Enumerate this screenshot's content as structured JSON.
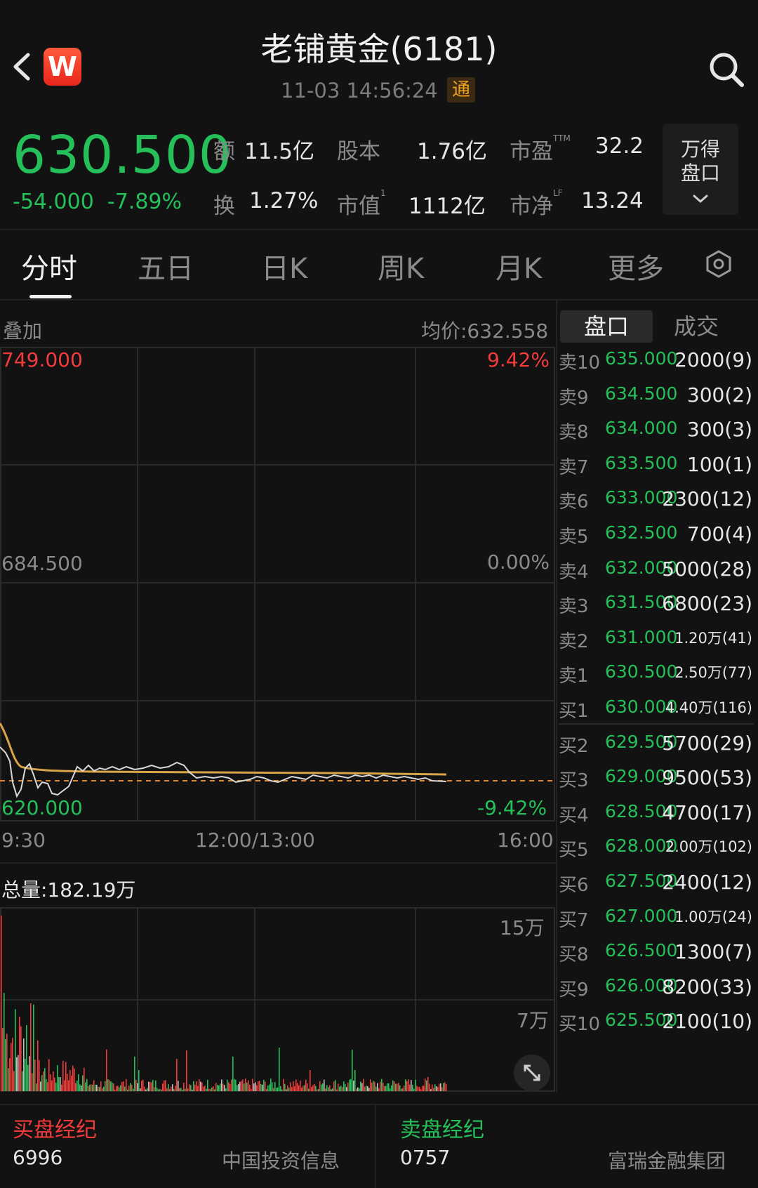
{
  "header": {
    "title": "老铺黄金(6181)",
    "datetime": "11-03 14:56:24",
    "connect_badge": "通",
    "logo_letter": "W"
  },
  "quote": {
    "price": "630.500",
    "change": "-54.000",
    "change_pct": "-7.89%",
    "stats": [
      {
        "label": "额",
        "sup": "",
        "value": "11.5亿"
      },
      {
        "label": "股本",
        "sup": "",
        "value": "1.76亿"
      },
      {
        "label": "市盈",
        "sup": "TTM",
        "value": "32.2"
      },
      {
        "label": "换",
        "sup": "",
        "value": "1.27%"
      },
      {
        "label": "市值",
        "sup": "1",
        "value": "1112亿"
      },
      {
        "label": "市净",
        "sup": "LF",
        "value": "13.24"
      }
    ],
    "wande_line1": "万得",
    "wande_line2": "盘口"
  },
  "tabs": [
    "分时",
    "五日",
    "日K",
    "周K",
    "月K",
    "更多"
  ],
  "chart": {
    "overlay_label": "叠加",
    "avg_price": "均价:632.558",
    "y_top": "749.000",
    "y_mid": "684.500",
    "y_bottom": "620.000",
    "pct_top": "9.42%",
    "pct_mid": "0.00%",
    "pct_bottom": "-9.42%",
    "x_start": "9:30",
    "x_mid": "12:00/13:00",
    "x_end": "16:00",
    "volume_total": "总量:182.19万",
    "vol_tick_high": "15万",
    "vol_tick_mid": "7万",
    "colors": {
      "price_line": "#d8d8d8",
      "avg_line": "#d9a347",
      "prev_close": "#e0882a",
      "up": "#f23b3b",
      "down": "#25c05a"
    }
  },
  "orderbook": {
    "tab_active": "盘口",
    "tab_other": "成交",
    "asks": [
      {
        "name": "卖10",
        "price": "635.000",
        "vol": "2000(9)"
      },
      {
        "name": "卖9",
        "price": "634.500",
        "vol": "300(2)"
      },
      {
        "name": "卖8",
        "price": "634.000",
        "vol": "300(3)"
      },
      {
        "name": "卖7",
        "price": "633.500",
        "vol": "100(1)"
      },
      {
        "name": "卖6",
        "price": "633.000",
        "vol": "2300(12)"
      },
      {
        "name": "卖5",
        "price": "632.500",
        "vol": "700(4)"
      },
      {
        "name": "卖4",
        "price": "632.000",
        "vol": "5000(28)"
      },
      {
        "name": "卖3",
        "price": "631.500",
        "vol": "6800(23)"
      },
      {
        "name": "卖2",
        "price": "631.000",
        "vol": "1.20万(41)"
      },
      {
        "name": "卖1",
        "price": "630.500",
        "vol": "2.50万(77)"
      }
    ],
    "bids": [
      {
        "name": "买1",
        "price": "630.000",
        "vol": "4.40万(116)"
      },
      {
        "name": "买2",
        "price": "629.500",
        "vol": "5700(29)"
      },
      {
        "name": "买3",
        "price": "629.000",
        "vol": "9500(53)"
      },
      {
        "name": "买4",
        "price": "628.500",
        "vol": "4700(17)"
      },
      {
        "name": "买5",
        "price": "628.000",
        "vol": "2.00万(102)"
      },
      {
        "name": "买6",
        "price": "627.500",
        "vol": "2400(12)"
      },
      {
        "name": "买7",
        "price": "627.000",
        "vol": "1.00万(24)"
      },
      {
        "name": "买8",
        "price": "626.500",
        "vol": "1300(7)"
      },
      {
        "name": "买9",
        "price": "626.000",
        "vol": "8200(33)"
      },
      {
        "name": "买10",
        "price": "625.500",
        "vol": "2100(10)"
      }
    ]
  },
  "brokers": {
    "buy_title": "买盘经纪",
    "buy_code": "6996",
    "buy_name": "中国投资信息",
    "sell_title": "卖盘经纪",
    "sell_code": "0757",
    "sell_name": "富瑞金融集团"
  }
}
